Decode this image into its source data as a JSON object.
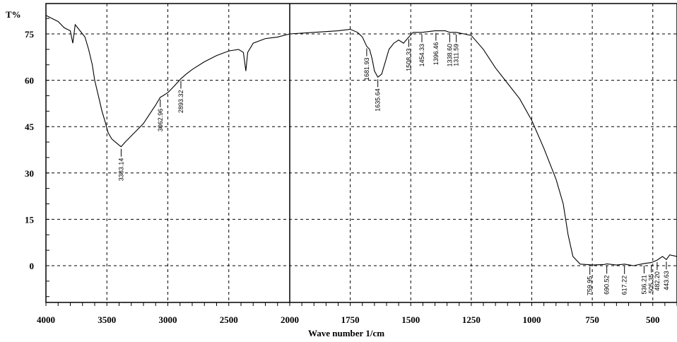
{
  "chart_data": {
    "type": "line",
    "title": "",
    "xlabel": "Wave number 1/cm",
    "ylabel": "T%",
    "xlim": [
      4000,
      400
    ],
    "ylim": [
      -12,
      82
    ],
    "x_reversed": true,
    "grid": true,
    "x_ticks": [
      4000,
      3500,
      3000,
      2500,
      2000,
      1750,
      1500,
      1250,
      1000,
      750,
      500
    ],
    "x_tick_labels": [
      "4000",
      "3500",
      "3000",
      "2500",
      "2000",
      "1750",
      "1500",
      "1250",
      "1000",
      "750",
      "500"
    ],
    "y_ticks": [
      0,
      15,
      30,
      45,
      60,
      75
    ],
    "y_tick_labels": [
      "0",
      "15",
      "30",
      "45",
      "60",
      "75"
    ],
    "note_scale": "x axis has two linear segments: 4000-2000 and 2000-400",
    "series": [
      {
        "values": [
          [
            4000,
            81
          ],
          [
            3950,
            80
          ],
          [
            3900,
            79
          ],
          [
            3850,
            77
          ],
          [
            3800,
            76
          ],
          [
            3780,
            72
          ],
          [
            3760,
            78
          ],
          [
            3720,
            76
          ],
          [
            3700,
            75
          ],
          [
            3680,
            74
          ],
          [
            3650,
            70
          ],
          [
            3620,
            65
          ],
          [
            3600,
            60
          ],
          [
            3570,
            55
          ],
          [
            3540,
            50
          ],
          [
            3510,
            46
          ],
          [
            3490,
            43
          ],
          [
            3460,
            41
          ],
          [
            3430,
            40
          ],
          [
            3400,
            39
          ],
          [
            3383,
            38.5
          ],
          [
            3350,
            40
          ],
          [
            3300,
            42
          ],
          [
            3250,
            44
          ],
          [
            3200,
            46
          ],
          [
            3150,
            49
          ],
          [
            3100,
            52
          ],
          [
            3062,
            54.5
          ],
          [
            3040,
            55
          ],
          [
            3000,
            56
          ],
          [
            2950,
            58
          ],
          [
            2893,
            60.5
          ],
          [
            2850,
            62
          ],
          [
            2800,
            63.5
          ],
          [
            2700,
            66
          ],
          [
            2600,
            68
          ],
          [
            2500,
            69.5
          ],
          [
            2420,
            70
          ],
          [
            2380,
            69
          ],
          [
            2360,
            63
          ],
          [
            2345,
            69
          ],
          [
            2300,
            72
          ],
          [
            2200,
            73.5
          ],
          [
            2100,
            74
          ],
          [
            2000,
            75
          ],
          [
            1900,
            75.5
          ],
          [
            1800,
            76
          ],
          [
            1750,
            76.5
          ],
          [
            1720,
            75.5
          ],
          [
            1700,
            74
          ],
          [
            1682,
            71
          ],
          [
            1670,
            70
          ],
          [
            1660,
            67
          ],
          [
            1650,
            63
          ],
          [
            1636,
            61
          ],
          [
            1620,
            62
          ],
          [
            1605,
            66
          ],
          [
            1590,
            70
          ],
          [
            1570,
            72
          ],
          [
            1550,
            73
          ],
          [
            1530,
            72
          ],
          [
            1508,
            74
          ],
          [
            1490,
            75.5
          ],
          [
            1454,
            75.5
          ],
          [
            1400,
            76
          ],
          [
            1357,
            76
          ],
          [
            1339,
            75.5
          ],
          [
            1312,
            75.5
          ],
          [
            1280,
            75
          ],
          [
            1250,
            74.5
          ],
          [
            1200,
            70
          ],
          [
            1150,
            64
          ],
          [
            1100,
            59
          ],
          [
            1050,
            54
          ],
          [
            1000,
            47
          ],
          [
            950,
            38
          ],
          [
            900,
            28
          ],
          [
            870,
            20
          ],
          [
            850,
            10
          ],
          [
            830,
            3
          ],
          [
            800,
            0.5
          ],
          [
            760,
            0.3
          ],
          [
            750,
            0.2
          ],
          [
            700,
            0.4
          ],
          [
            690,
            0.6
          ],
          [
            650,
            0.2
          ],
          [
            617,
            0.5
          ],
          [
            580,
            0
          ],
          [
            536,
            0.7
          ],
          [
            506,
            1
          ],
          [
            482,
            1.8
          ],
          [
            460,
            3
          ],
          [
            444,
            2
          ],
          [
            430,
            3.5
          ],
          [
            400,
            3
          ]
        ]
      }
    ],
    "peak_labels": [
      {
        "label": "3383.14",
        "x": 3383,
        "y": 38.5
      },
      {
        "label": "3062.96",
        "x": 3062,
        "y": 54.5
      },
      {
        "label": "2893.32",
        "x": 2893,
        "y": 60.5
      },
      {
        "label": "1681.93",
        "x": 1682,
        "y": 71
      },
      {
        "label": "1635.64",
        "x": 1636,
        "y": 61
      },
      {
        "label": "1508.33",
        "x": 1508,
        "y": 74
      },
      {
        "label": "1454.33",
        "x": 1454,
        "y": 75.5
      },
      {
        "label": "1396.46",
        "x": 1396,
        "y": 76
      },
      {
        "label": "1338.60",
        "x": 1339,
        "y": 75.5
      },
      {
        "label": "1311.59",
        "x": 1312,
        "y": 75.5
      },
      {
        "label": "759.95",
        "x": 760,
        "y": 0.3
      },
      {
        "label": "690.52",
        "x": 690,
        "y": 0.6
      },
      {
        "label": "617.22",
        "x": 617,
        "y": 0.5
      },
      {
        "label": "536.21",
        "x": 536,
        "y": 0.7
      },
      {
        "label": "505.35",
        "x": 506,
        "y": 1
      },
      {
        "label": "482.20",
        "x": 482,
        "y": 1.8
      },
      {
        "label": "443.63",
        "x": 444,
        "y": 2
      }
    ]
  }
}
